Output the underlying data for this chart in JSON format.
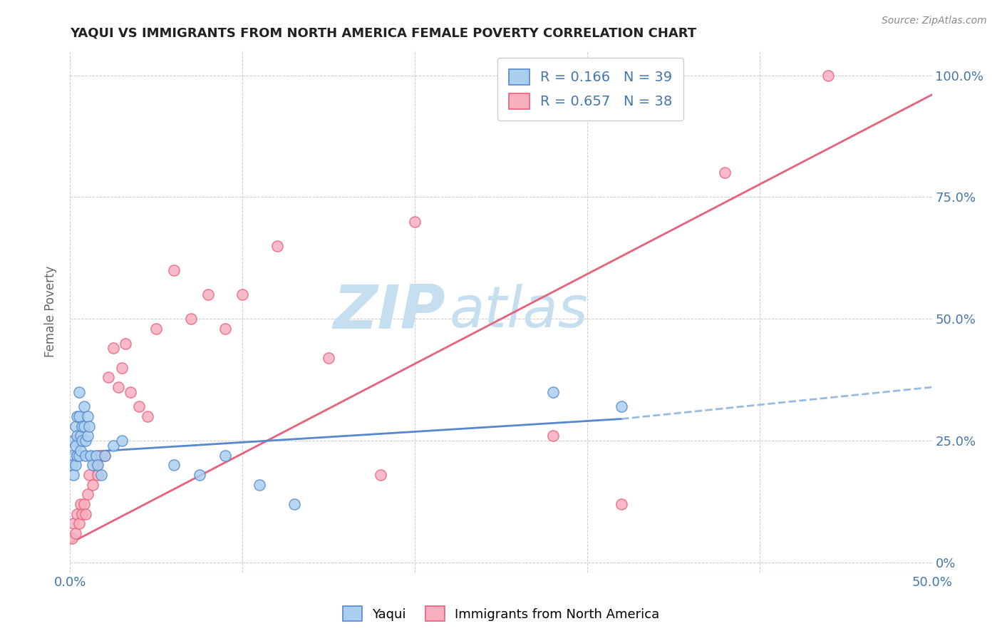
{
  "title": "YAQUI VS IMMIGRANTS FROM NORTH AMERICA FEMALE POVERTY CORRELATION CHART",
  "source": "Source: ZipAtlas.com",
  "ylabel": "Female Poverty",
  "xlim": [
    0.0,
    0.5
  ],
  "ylim": [
    -0.02,
    1.05
  ],
  "legend_labels": [
    "Yaqui",
    "Immigrants from North America"
  ],
  "R_yaqui": 0.166,
  "N_yaqui": 39,
  "R_immigrants": 0.657,
  "N_immigrants": 38,
  "color_yaqui": "#aacfef",
  "color_immigrants": "#f8afc0",
  "color_line_yaqui": "#5588cc",
  "color_line_immigrants": "#e8607a",
  "color_line_yaqui_dashed": "#99bbdd",
  "watermark_zip": "ZIP",
  "watermark_atlas": "atlas",
  "watermark_color": "#c5dff0",
  "yaqui_x": [
    0.001,
    0.001,
    0.002,
    0.002,
    0.003,
    0.003,
    0.003,
    0.004,
    0.004,
    0.004,
    0.005,
    0.005,
    0.005,
    0.006,
    0.006,
    0.007,
    0.007,
    0.008,
    0.008,
    0.009,
    0.009,
    0.01,
    0.01,
    0.011,
    0.012,
    0.013,
    0.015,
    0.016,
    0.018,
    0.02,
    0.025,
    0.03,
    0.06,
    0.075,
    0.09,
    0.11,
    0.13,
    0.28,
    0.32
  ],
  "yaqui_y": [
    0.22,
    0.2,
    0.25,
    0.18,
    0.28,
    0.24,
    0.2,
    0.3,
    0.26,
    0.22,
    0.35,
    0.3,
    0.22,
    0.26,
    0.23,
    0.28,
    0.25,
    0.32,
    0.28,
    0.25,
    0.22,
    0.3,
    0.26,
    0.28,
    0.22,
    0.2,
    0.22,
    0.2,
    0.18,
    0.22,
    0.24,
    0.25,
    0.2,
    0.18,
    0.22,
    0.16,
    0.12,
    0.35,
    0.32
  ],
  "immigrants_x": [
    0.001,
    0.002,
    0.003,
    0.004,
    0.005,
    0.006,
    0.007,
    0.008,
    0.009,
    0.01,
    0.011,
    0.013,
    0.015,
    0.016,
    0.018,
    0.02,
    0.022,
    0.025,
    0.028,
    0.03,
    0.032,
    0.035,
    0.04,
    0.045,
    0.05,
    0.06,
    0.07,
    0.08,
    0.09,
    0.1,
    0.12,
    0.15,
    0.18,
    0.2,
    0.28,
    0.32,
    0.38,
    0.44
  ],
  "immigrants_y": [
    0.05,
    0.08,
    0.06,
    0.1,
    0.08,
    0.12,
    0.1,
    0.12,
    0.1,
    0.14,
    0.18,
    0.16,
    0.2,
    0.18,
    0.22,
    0.22,
    0.38,
    0.44,
    0.36,
    0.4,
    0.45,
    0.35,
    0.32,
    0.3,
    0.48,
    0.6,
    0.5,
    0.55,
    0.48,
    0.55,
    0.65,
    0.42,
    0.18,
    0.7,
    0.26,
    0.12,
    0.8,
    1.0
  ],
  "line_yaqui_x0": 0.0,
  "line_yaqui_x1": 0.32,
  "line_yaqui_xdash1": 0.5,
  "line_yaqui_y0": 0.225,
  "line_yaqui_y1": 0.295,
  "line_yaqui_ydash1": 0.36,
  "line_imm_x0": 0.0,
  "line_imm_x1": 0.5,
  "line_imm_y0": 0.04,
  "line_imm_y1": 0.96
}
